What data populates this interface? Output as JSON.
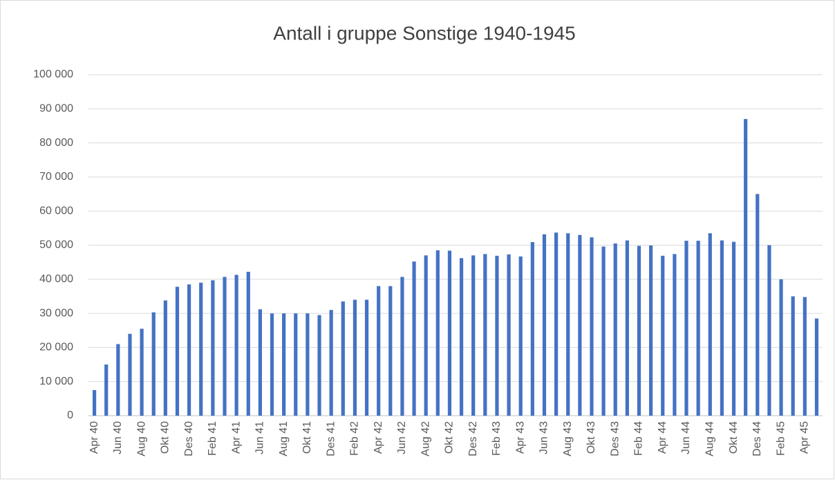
{
  "chart_data": {
    "type": "bar",
    "title": "Antall i gruppe Sonstige 1940-1945",
    "categories": [
      "Apr 40",
      null,
      "Jun 40",
      null,
      "Aug 40",
      null,
      "Okt 40",
      null,
      "Des 40",
      null,
      "Feb 41",
      null,
      "Apr 41",
      null,
      "Jun 41",
      null,
      "Aug 41",
      null,
      "Okt 41",
      null,
      "Des 41",
      null,
      "Feb 42",
      null,
      "Apr 42",
      null,
      "Jun 42",
      null,
      "Aug 42",
      null,
      "Okt 42",
      null,
      "Des 42",
      null,
      "Feb 43",
      null,
      "Apr 43",
      null,
      "Jun 43",
      null,
      "Aug 43",
      null,
      "Okt 43",
      null,
      "Des 43",
      null,
      "Feb 44",
      null,
      "Apr 44",
      null,
      "Jun 44",
      null,
      "Aug 44",
      null,
      "Okt 44",
      null,
      "Des 44",
      null,
      "Feb 45",
      null,
      "Apr 45",
      null
    ],
    "values": [
      7500,
      15000,
      21000,
      24000,
      25500,
      30300,
      33800,
      37800,
      38500,
      39000,
      39700,
      40700,
      41300,
      42200,
      31200,
      30000,
      30000,
      30000,
      30000,
      29500,
      31000,
      33500,
      34000,
      34000,
      38000,
      38000,
      40700,
      45200,
      47000,
      48500,
      48400,
      46200,
      47000,
      47400,
      46900,
      47300,
      46700,
      50900,
      53200,
      53700,
      53500,
      53000,
      52300,
      49600,
      50500,
      51400,
      49800,
      49900,
      46900,
      47400,
      51300,
      51300,
      53500,
      51400,
      51000,
      87000,
      65000,
      50000,
      40000,
      35000,
      34800,
      28500
    ],
    "color": "#4472c4",
    "ylim": [
      0,
      100000
    ],
    "yticks": [
      0,
      {
        "value": 10000,
        "label": "10 000"
      },
      {
        "value": 20000,
        "label": "20 000"
      },
      {
        "value": 30000,
        "label": "30 000"
      },
      {
        "value": 40000,
        "label": "40 000"
      },
      {
        "value": 50000,
        "label": "50 000"
      },
      {
        "value": 60000,
        "label": "60 000"
      },
      {
        "value": 70000,
        "label": "70 000"
      },
      {
        "value": 80000,
        "label": "80 000"
      },
      {
        "value": 90000,
        "label": "90 000"
      },
      {
        "value": 100000,
        "label": "100 000"
      }
    ],
    "grid": true
  }
}
